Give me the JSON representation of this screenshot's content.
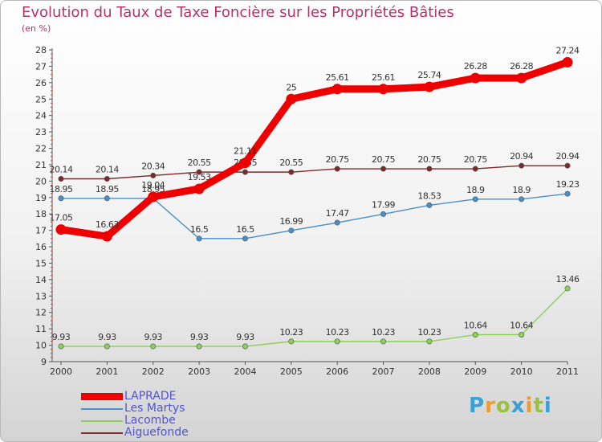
{
  "title": "Evolution du Taux de Taxe Foncière sur les Propriétés Bâties",
  "subtitle": "(en %)",
  "logo": {
    "text": "Proxiti",
    "letters": [
      "P",
      "r",
      "o",
      "x",
      "i",
      "t",
      "i"
    ],
    "colors": [
      "#3aa0d8",
      "#f19a2e",
      "#9ac23c",
      "#3aa0d8",
      "#f19a2e",
      "#9ac23c",
      "#3aa0d8"
    ]
  },
  "chart_data": {
    "type": "line",
    "title": "Evolution du Taux de Taxe Foncière sur les Propriétés Bâties",
    "ylabel": "(en %)",
    "xlabel": "",
    "ylim": [
      9,
      28
    ],
    "yticks": [
      "9",
      "10",
      "11",
      "12",
      "13",
      "14",
      "15",
      "16",
      "17",
      "18",
      "19",
      "20",
      "21",
      "22",
      "23",
      "24",
      "25",
      "26",
      "27",
      "28"
    ],
    "grid": false,
    "legend_position": "bottom-left",
    "x": [
      "2000",
      "2001",
      "2002",
      "2003",
      "2004",
      "2005",
      "2006",
      "2007",
      "2008",
      "2009",
      "2010",
      "2011"
    ],
    "series": [
      {
        "name": "Aiguefonde",
        "color": "#7a2a2a",
        "values": [
          20.14,
          20.14,
          20.34,
          20.55,
          20.55,
          20.55,
          20.75,
          20.75,
          20.75,
          20.75,
          20.94,
          20.94
        ],
        "labels": [
          "20.14",
          "20.14",
          "20.34",
          "20.55",
          "20.55",
          "20.55",
          "20.75",
          "20.75",
          "20.75",
          "20.75",
          "20.94",
          "20.94"
        ]
      },
      {
        "name": "Les Martys",
        "color": "#4a90c8",
        "values": [
          18.95,
          18.95,
          18.95,
          16.5,
          16.5,
          16.99,
          17.47,
          17.99,
          18.53,
          18.9,
          18.9,
          19.23
        ],
        "labels": [
          "18.95",
          "18.95",
          "18.95",
          "16.5",
          "16.5",
          "16.99",
          "17.47",
          "17.99",
          "18.53",
          "18.9",
          "18.9",
          "19.23"
        ]
      },
      {
        "name": "Lacombe",
        "color": "#8fd05a",
        "values": [
          9.93,
          9.93,
          9.93,
          9.93,
          9.93,
          10.23,
          10.23,
          10.23,
          10.23,
          10.64,
          10.64,
          13.46
        ],
        "labels": [
          "9.93",
          "9.93",
          "9.93",
          "9.93",
          "9.93",
          "10.23",
          "10.23",
          "10.23",
          "10.23",
          "10.64",
          "10.64",
          "13.46"
        ]
      },
      {
        "name": "LAPRADE",
        "color": "#ee0000",
        "values": [
          17.05,
          16.63,
          19.04,
          19.53,
          21.11,
          25,
          25.61,
          25.61,
          25.74,
          26.28,
          26.28,
          27.24
        ],
        "labels": [
          "17.05",
          "16.63",
          "19.04",
          "19.53",
          "21.11",
          "25",
          "25.61",
          "25.61",
          "25.74",
          "26.28",
          "26.28",
          "27.24"
        ]
      }
    ],
    "legend": [
      "LAPRADE",
      "Les Martys",
      "Lacombe",
      "Aiguefonde"
    ]
  }
}
